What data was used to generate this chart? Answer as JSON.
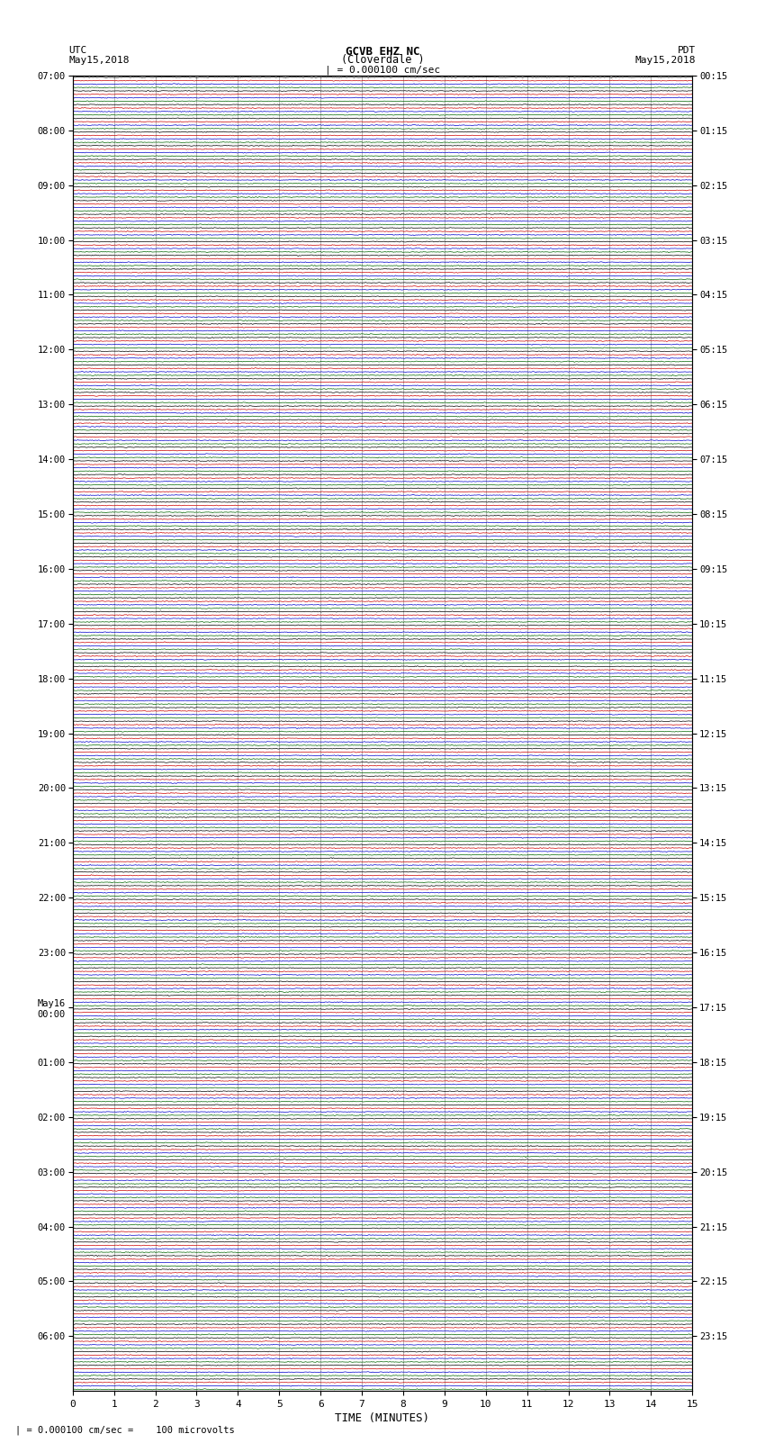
{
  "title_line1": "GCVB EHZ NC",
  "title_line2": "(Cloverdale )",
  "scale_label": "| = 0.000100 cm/sec",
  "footer_label": "| = 0.000100 cm/sec =    100 microvolts",
  "utc_label_line1": "UTC",
  "utc_label_line2": "May15,2018",
  "pdt_label_line1": "PDT",
  "pdt_label_line2": "May15,2018",
  "xlabel": "TIME (MINUTES)",
  "left_times_utc": [
    "07:00",
    "",
    "",
    "",
    "08:00",
    "",
    "",
    "",
    "09:00",
    "",
    "",
    "",
    "10:00",
    "",
    "",
    "",
    "11:00",
    "",
    "",
    "",
    "12:00",
    "",
    "",
    "",
    "13:00",
    "",
    "",
    "",
    "14:00",
    "",
    "",
    "",
    "15:00",
    "",
    "",
    "",
    "16:00",
    "",
    "",
    "",
    "17:00",
    "",
    "",
    "",
    "18:00",
    "",
    "",
    "",
    "19:00",
    "",
    "",
    "",
    "20:00",
    "",
    "",
    "",
    "21:00",
    "",
    "",
    "",
    "22:00",
    "",
    "",
    "",
    "23:00",
    "",
    "",
    "",
    "May16\n00:00",
    "",
    "",
    "",
    "01:00",
    "",
    "",
    "",
    "02:00",
    "",
    "",
    "",
    "03:00",
    "",
    "",
    "",
    "04:00",
    "",
    "",
    "",
    "05:00",
    "",
    "",
    "",
    "06:00",
    "",
    "",
    ""
  ],
  "right_times_pdt": [
    "00:15",
    "",
    "",
    "",
    "01:15",
    "",
    "",
    "",
    "02:15",
    "",
    "",
    "",
    "03:15",
    "",
    "",
    "",
    "04:15",
    "",
    "",
    "",
    "05:15",
    "",
    "",
    "",
    "06:15",
    "",
    "",
    "",
    "07:15",
    "",
    "",
    "",
    "08:15",
    "",
    "",
    "",
    "09:15",
    "",
    "",
    "",
    "10:15",
    "",
    "",
    "",
    "11:15",
    "",
    "",
    "",
    "12:15",
    "",
    "",
    "",
    "13:15",
    "",
    "",
    "",
    "14:15",
    "",
    "",
    "",
    "15:15",
    "",
    "",
    "",
    "16:15",
    "",
    "",
    "",
    "17:15",
    "",
    "",
    "",
    "18:15",
    "",
    "",
    "",
    "19:15",
    "",
    "",
    "",
    "20:15",
    "",
    "",
    "",
    "21:15",
    "",
    "",
    "",
    "22:15",
    "",
    "",
    "",
    "23:15",
    "",
    "",
    ""
  ],
  "num_rows": 96,
  "traces_per_row": 4,
  "trace_colors": [
    "#000000",
    "#cc0000",
    "#0000cc",
    "#006600"
  ],
  "bg_color": "#ffffff",
  "x_ticks": [
    0,
    1,
    2,
    3,
    4,
    5,
    6,
    7,
    8,
    9,
    10,
    11,
    12,
    13,
    14,
    15
  ],
  "figsize": [
    8.5,
    16.13
  ],
  "dpi": 100,
  "grid_color": "#999999",
  "noise_amp": [
    0.012,
    0.01,
    0.015,
    0.008
  ]
}
